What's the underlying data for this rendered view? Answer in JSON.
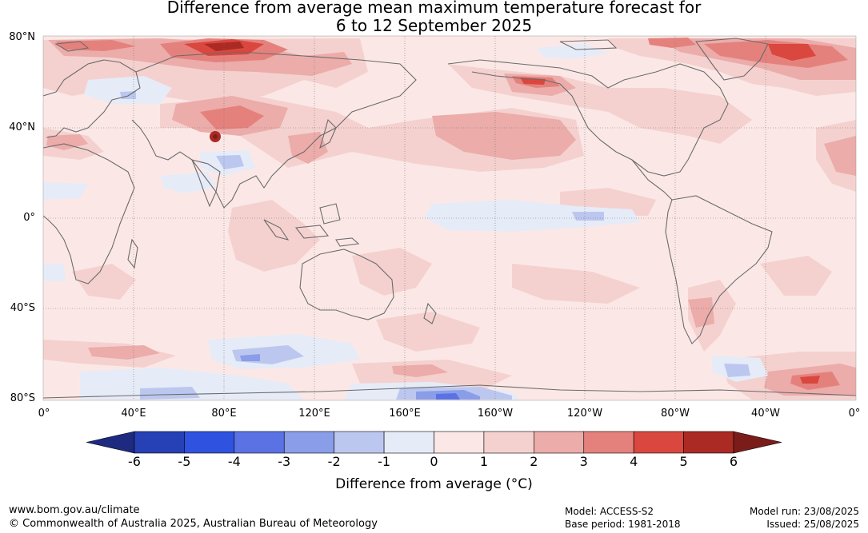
{
  "title": {
    "line1": "Difference from average mean maximum temperature forecast for",
    "line2": "6 to 12 September 2025"
  },
  "lat_labels": [
    "80°N",
    "40°N",
    "0°",
    "40°S",
    "80°S"
  ],
  "lon_labels": [
    "0°",
    "40°E",
    "80°E",
    "120°E",
    "160°E",
    "160°W",
    "120°W",
    "80°W",
    "40°W",
    "0°"
  ],
  "colorbar": {
    "ticks": [
      "-6",
      "-5",
      "-4",
      "-3",
      "-2",
      "-1",
      "0",
      "1",
      "2",
      "3",
      "4",
      "5",
      "6"
    ],
    "colors": [
      "#1e2a80",
      "#2641b6",
      "#2f52e0",
      "#5a72e4",
      "#8a9de8",
      "#bcc7f0",
      "#e6ebf8",
      "#fbe8e6",
      "#f4d1cf",
      "#ebacaa",
      "#e5817d",
      "#d9473e",
      "#ab2a24",
      "#7a1d1a"
    ],
    "label": "Difference from average (°C)"
  },
  "footer": {
    "url": "www.bom.gov.au/climate",
    "copyright": "© Commonwealth of Australia 2025, Australian Bureau of Meteorology",
    "model": "Model: ACCESS-S2",
    "base_period": "Base period: 1981-2018",
    "model_run": "Model run: 23/08/2025",
    "issued": "Issued: 25/08/2025"
  }
}
